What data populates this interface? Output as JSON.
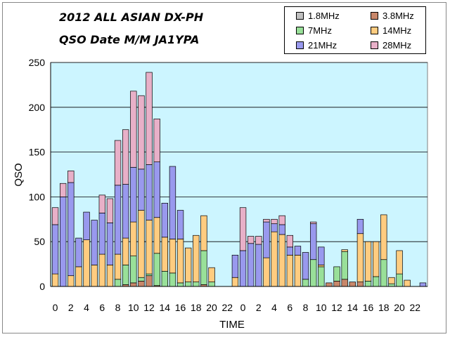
{
  "chart_data": {
    "type": "bar",
    "stacked": true,
    "title": "2012 ALL ASIAN DX-PH",
    "subtitle": "QSO Date M/M JA1YPA",
    "xlabel": "TIME",
    "ylabel": "QSO",
    "ylim": [
      0,
      250
    ],
    "yticks": [
      0,
      50,
      100,
      150,
      200,
      250
    ],
    "grid": true,
    "legend_position": "top-right",
    "categories": [
      "0",
      "1",
      "2",
      "3",
      "4",
      "5",
      "6",
      "7",
      "8",
      "9",
      "10",
      "11",
      "12",
      "13",
      "14",
      "15",
      "16",
      "17",
      "18",
      "19",
      "20",
      "21",
      "22",
      "23",
      "0",
      "1",
      "2",
      "3",
      "4",
      "5",
      "6",
      "7",
      "8",
      "9",
      "10",
      "11",
      "12",
      "13",
      "14",
      "15",
      "16",
      "17",
      "18",
      "19",
      "20",
      "21",
      "22",
      "23"
    ],
    "xtick_labels": [
      "0",
      "",
      "2",
      "",
      "4",
      "",
      "6",
      "",
      "8",
      "",
      "10",
      "",
      "12",
      "",
      "14",
      "",
      "16",
      "",
      "18",
      "",
      "20",
      "",
      "22",
      "",
      "0",
      "",
      "2",
      "",
      "4",
      "",
      "6",
      "",
      "8",
      "",
      "10",
      "",
      "12",
      "",
      "14",
      "",
      "16",
      "",
      "18",
      "",
      "20",
      "",
      "22",
      ""
    ],
    "series": [
      {
        "name": "1.8MHz",
        "color": "#c0c0c0",
        "values": [
          0,
          0,
          0,
          0,
          0,
          0,
          0,
          0,
          0,
          0,
          0,
          0,
          0,
          0,
          0,
          0,
          0,
          0,
          0,
          0,
          0,
          0,
          0,
          0,
          0,
          0,
          0,
          0,
          0,
          0,
          0,
          0,
          0,
          0,
          0,
          0,
          0,
          0,
          0,
          0,
          0,
          0,
          0,
          0,
          0,
          0,
          0,
          0
        ]
      },
      {
        "name": "3.8MHz",
        "color": "#c8876a",
        "values": [
          0,
          0,
          0,
          0,
          0,
          0,
          0,
          0,
          0,
          2,
          4,
          6,
          12,
          1,
          0,
          0,
          0,
          0,
          0,
          2,
          0,
          0,
          0,
          0,
          0,
          0,
          0,
          0,
          0,
          0,
          0,
          0,
          0,
          0,
          0,
          4,
          6,
          8,
          5,
          5,
          0,
          0,
          0,
          0,
          0,
          0,
          0,
          0
        ]
      },
      {
        "name": "7MHz",
        "color": "#99e099",
        "values": [
          0,
          0,
          0,
          0,
          0,
          0,
          0,
          0,
          8,
          22,
          30,
          4,
          2,
          36,
          17,
          15,
          4,
          5,
          5,
          38,
          5,
          0,
          0,
          0,
          0,
          0,
          0,
          0,
          0,
          0,
          0,
          0,
          8,
          30,
          22,
          0,
          16,
          31,
          0,
          0,
          6,
          11,
          30,
          3,
          14,
          0,
          0,
          0
        ]
      },
      {
        "name": "14MHz",
        "color": "#ffcc80",
        "values": [
          14,
          0,
          12,
          22,
          52,
          24,
          36,
          24,
          28,
          30,
          38,
          75,
          60,
          40,
          38,
          38,
          49,
          38,
          52,
          39,
          16,
          0,
          0,
          10,
          0,
          0,
          0,
          32,
          61,
          58,
          35,
          35,
          0,
          0,
          2,
          0,
          0,
          2,
          0,
          54,
          44,
          39,
          50,
          7,
          26,
          7,
          0,
          0
        ]
      },
      {
        "name": "21MHz",
        "color": "#9999ee",
        "values": [
          55,
          100,
          104,
          32,
          31,
          50,
          46,
          47,
          77,
          60,
          61,
          46,
          62,
          62,
          38,
          81,
          32,
          0,
          0,
          0,
          0,
          0,
          0,
          25,
          40,
          48,
          47,
          40,
          9,
          11,
          9,
          10,
          30,
          40,
          20,
          0,
          0,
          0,
          0,
          16,
          0,
          0,
          0,
          0,
          0,
          0,
          0,
          4
        ]
      },
      {
        "name": "28MHz",
        "color": "#e8b0c8",
        "values": [
          19,
          15,
          13,
          0,
          0,
          0,
          20,
          27,
          50,
          61,
          85,
          82,
          103,
          48,
          0,
          0,
          0,
          0,
          0,
          0,
          0,
          0,
          0,
          0,
          48,
          8,
          9,
          3,
          5,
          10,
          13,
          0,
          0,
          2,
          0,
          0,
          0,
          0,
          0,
          0,
          0,
          0,
          0,
          0,
          0,
          0,
          0,
          0
        ]
      }
    ]
  }
}
